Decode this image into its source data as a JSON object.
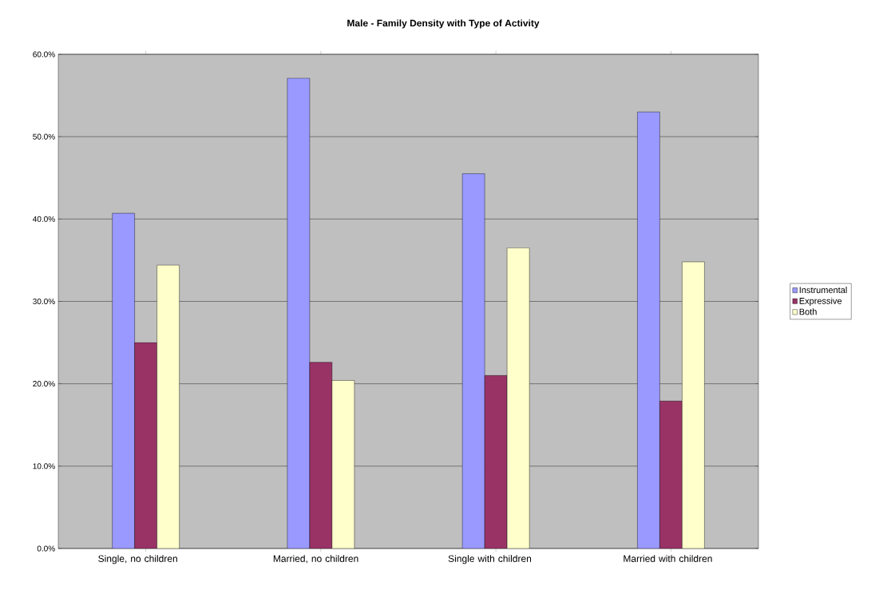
{
  "chart_data": {
    "type": "bar",
    "title": "Male - Family Density with Type of Activity",
    "categories": [
      "Single, no children",
      "Married, no children",
      "Single with children",
      "Married with children"
    ],
    "series": [
      {
        "name": "Instrumental",
        "color": "#9999ff",
        "values": [
          40.7,
          57.1,
          45.5,
          53.0
        ]
      },
      {
        "name": "Expressive",
        "color": "#993366",
        "values": [
          25.0,
          22.6,
          21.0,
          17.9
        ]
      },
      {
        "name": "Both",
        "color": "#ffffcc",
        "values": [
          34.4,
          20.4,
          36.5,
          34.8
        ]
      }
    ],
    "ylim": [
      0,
      60
    ],
    "yticks": [
      {
        "value": 0,
        "label": "0.0%"
      },
      {
        "value": 10,
        "label": "10.0%"
      },
      {
        "value": 20,
        "label": "20.0%"
      },
      {
        "value": 30,
        "label": "30.0%"
      },
      {
        "value": 40,
        "label": "40.0%"
      },
      {
        "value": 50,
        "label": "50.0%"
      },
      {
        "value": 60,
        "label": "60.0%"
      }
    ],
    "grid": "y",
    "legend": "right"
  }
}
